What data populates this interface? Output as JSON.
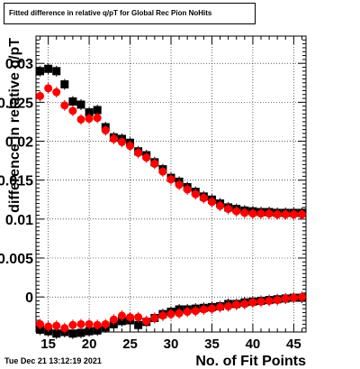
{
  "chart_data": {
    "type": "scatter",
    "title": "Fitted difference in relative q/pT for Global Rec Pion NoHits",
    "xlabel": "No. of Fit Points",
    "ylabel": "difference in relative q/pT",
    "xlim": [
      13.5,
      46.5
    ],
    "ylim": [
      -0.0045,
      0.0335
    ],
    "x_ticks": [
      15,
      20,
      25,
      30,
      35,
      40,
      45
    ],
    "x_tick_labels": [
      "15",
      "20",
      "25",
      "30",
      "35",
      "40",
      "45"
    ],
    "y_ticks": [
      0,
      0.005,
      0.01,
      0.015,
      0.02,
      0.025,
      0.03
    ],
    "y_tick_labels": [
      "0",
      "0.005",
      "0.01",
      "0.015",
      "0.02",
      "0.025",
      "0.03"
    ],
    "grid": true,
    "series": [
      {
        "color": "#000000",
        "x": [
          14,
          15,
          16,
          17,
          18,
          19,
          20,
          21,
          22,
          23,
          24,
          25,
          26,
          27,
          28,
          29,
          30,
          31,
          32,
          33,
          34,
          35,
          36,
          37,
          38,
          39,
          40,
          41,
          42,
          43,
          44,
          45,
          46
        ],
        "y": [
          0.029,
          0.0293,
          0.029,
          0.0273,
          0.0251,
          0.0247,
          0.0237,
          0.024,
          0.0218,
          0.0205,
          0.0203,
          0.0198,
          0.0187,
          0.0182,
          0.0173,
          0.0164,
          0.0153,
          0.0148,
          0.0141,
          0.0135,
          0.0129,
          0.0125,
          0.012,
          0.0115,
          0.0113,
          0.0111,
          0.011,
          0.0109,
          0.0109,
          0.0108,
          0.0108,
          0.0108,
          0.0108
        ]
      },
      {
        "color": "#ff0000",
        "x": [
          14,
          15,
          16,
          17,
          18,
          19,
          20,
          21,
          22,
          23,
          24,
          25,
          26,
          27,
          28,
          29,
          30,
          31,
          32,
          33,
          34,
          35,
          36,
          37,
          38,
          39,
          40,
          41,
          42,
          43,
          44,
          45,
          46
        ],
        "y": [
          0.0258,
          0.0268,
          0.0263,
          0.0246,
          0.0239,
          0.0228,
          0.0229,
          0.023,
          0.0214,
          0.0203,
          0.0199,
          0.0194,
          0.0185,
          0.0179,
          0.0171,
          0.0161,
          0.0151,
          0.0144,
          0.0138,
          0.0132,
          0.0127,
          0.0122,
          0.0117,
          0.0113,
          0.011,
          0.0108,
          0.0107,
          0.0107,
          0.0107,
          0.0106,
          0.0106,
          0.0106,
          0.0106
        ]
      },
      {
        "color": "#000000",
        "x": [
          14,
          15,
          16,
          17,
          18,
          19,
          20,
          21,
          22,
          23,
          24,
          25,
          26,
          27,
          28,
          29,
          30,
          31,
          32,
          33,
          34,
          35,
          36,
          37,
          38,
          39,
          40,
          41,
          42,
          43,
          44,
          45,
          46
        ],
        "y": [
          -0.0042,
          -0.0044,
          -0.0047,
          -0.0045,
          -0.0047,
          -0.0046,
          -0.0044,
          -0.0043,
          -0.0039,
          -0.0035,
          -0.0031,
          -0.003,
          -0.0036,
          -0.0032,
          -0.0027,
          -0.0022,
          -0.0019,
          -0.0016,
          -0.0016,
          -0.0015,
          -0.0014,
          -0.0013,
          -0.0012,
          -0.0009,
          -0.0009,
          -0.0007,
          -0.0006,
          -0.0005,
          -0.0004,
          -0.0003,
          -0.0002,
          -0.0001,
          -0.0001
        ]
      },
      {
        "color": "#ff0000",
        "x": [
          14,
          15,
          16,
          17,
          18,
          19,
          20,
          21,
          22,
          23,
          24,
          25,
          26,
          27,
          28,
          29,
          30,
          31,
          32,
          33,
          34,
          35,
          36,
          37,
          38,
          39,
          40,
          41,
          42,
          43,
          44,
          45,
          46
        ],
        "y": [
          -0.0035,
          -0.0038,
          -0.0037,
          -0.004,
          -0.0036,
          -0.0035,
          -0.0035,
          -0.0036,
          -0.0035,
          -0.0029,
          -0.0024,
          -0.0026,
          -0.0026,
          -0.0031,
          -0.0027,
          -0.0024,
          -0.0022,
          -0.0021,
          -0.0019,
          -0.0018,
          -0.0016,
          -0.0015,
          -0.0013,
          -0.0012,
          -0.001,
          -0.0009,
          -0.0007,
          -0.0006,
          -0.0005,
          -0.0004,
          -0.0002,
          -0.0001,
          0.0
        ]
      }
    ]
  },
  "timestamp": "Tue Dec 21 13:12:19 2021"
}
